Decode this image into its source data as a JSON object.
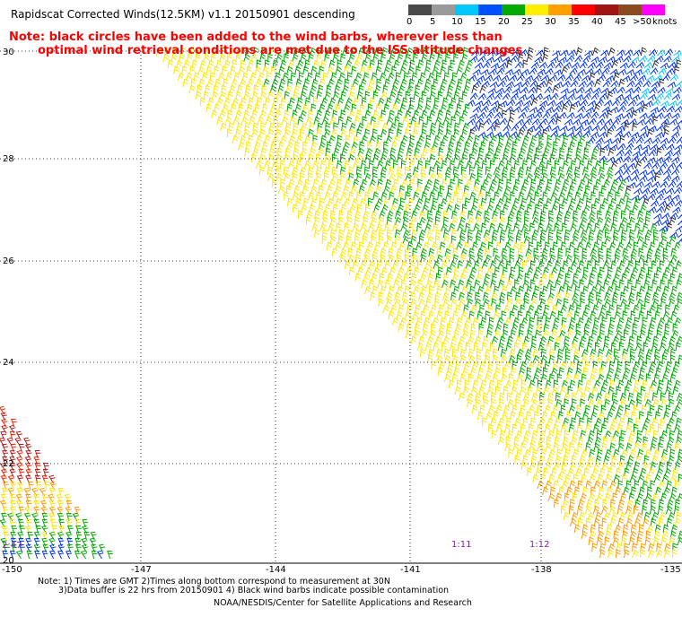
{
  "title": "Rapidscat Corrected Winds(12.5KM) v1.1 20150901 descending",
  "notice": {
    "line1": "Note: black circles have been added to the wind barbs, wherever less than",
    "line2": "optimal wind retrieval conditions are met due to the ISS altitude changes"
  },
  "legend": {
    "unit": "knots",
    "labels": [
      "0",
      "5",
      "10",
      "15",
      "20",
      "25",
      "30",
      "35",
      "40",
      "45",
      ">50"
    ],
    "colors": [
      "#4a4a4a",
      "#9a9a9a",
      "#00c8ff",
      "#0050ff",
      "#00aa00",
      "#ffee00",
      "#ffa000",
      "#ff0000",
      "#a01414",
      "#8b4a20",
      "#ff00ff",
      "#7a00aa"
    ]
  },
  "axes": {
    "lat_labels": [
      "30",
      "28",
      "26",
      "24",
      "22",
      "20"
    ],
    "lon_labels": [
      "-150",
      "-147",
      "-144",
      "-141",
      "-138",
      "-135"
    ]
  },
  "times": [
    "2:47",
    "1:11",
    "1:12"
  ],
  "footnote": {
    "line1": "Note: 1) Times are GMT 2)Times along bottom correspond to measurement at 30N",
    "line2": "3)Data buffer is 22 hrs from 20150901 4) Black wind barbs indicate possible contamination"
  },
  "credit": "NOAA/NESDIS/Center for Satellite Applications and Research"
}
